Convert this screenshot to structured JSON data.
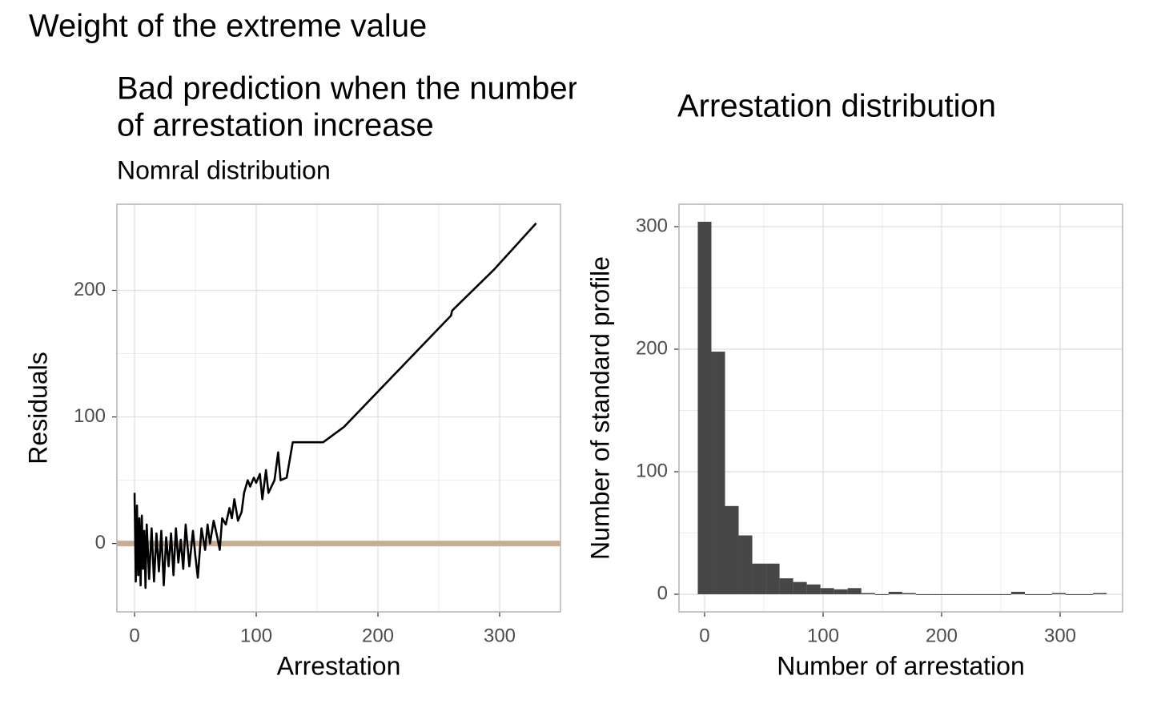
{
  "title": "Weight of the extreme value",
  "chart_data": [
    {
      "type": "line",
      "title": [
        "Bad prediction when the number",
        "of arrestation increase"
      ],
      "subtitle": "Nomral distribution",
      "x_label": "Arrestation",
      "y_label": "Residuals",
      "x": [
        0,
        1,
        2,
        3,
        4,
        5,
        6,
        7,
        8,
        9,
        10,
        12,
        14,
        16,
        18,
        20,
        22,
        24,
        26,
        28,
        30,
        32,
        34,
        36,
        38,
        40,
        42,
        45,
        48,
        50,
        52,
        55,
        58,
        60,
        62,
        65,
        68,
        70,
        72,
        75,
        78,
        80,
        82,
        85,
        88,
        90,
        93,
        95,
        98,
        100,
        103,
        105,
        108,
        110,
        115,
        118,
        120,
        125,
        130,
        155,
        172,
        260,
        261,
        295,
        330
      ],
      "values": [
        40,
        -30,
        30,
        -25,
        20,
        -33,
        22,
        -20,
        10,
        -35,
        15,
        -28,
        12,
        -30,
        8,
        -22,
        10,
        -33,
        5,
        -18,
        8,
        -25,
        12,
        -15,
        3,
        -20,
        15,
        -18,
        10,
        -10,
        -27,
        12,
        -5,
        15,
        0,
        18,
        5,
        -5,
        20,
        15,
        28,
        20,
        35,
        18,
        25,
        40,
        50,
        45,
        52,
        48,
        55,
        35,
        58,
        40,
        50,
        72,
        50,
        52,
        80,
        80,
        92,
        180,
        184,
        216,
        253
      ],
      "color": "#000000",
      "hline": 0,
      "hline_color": "#c8ad8e",
      "xlim": [
        -14.5,
        350
      ],
      "ylim": [
        -54,
        268
      ],
      "xticks": [
        0,
        100,
        200,
        300
      ],
      "yticks": [
        0,
        100,
        200
      ],
      "grid": true,
      "minor_grid": true
    },
    {
      "type": "histogram",
      "title": [
        "Arrestation distribution"
      ],
      "x_label": "Number of arrestation",
      "y_label": "Number of standard profile",
      "bins": [
        -5.75,
        5.75,
        17.25,
        28.75,
        40.25,
        51.75,
        63.25,
        74.75,
        86.25,
        97.75,
        109.25,
        120.75,
        132.25,
        143.75,
        155.25,
        166.75,
        178.25,
        189.75,
        201.25,
        212.75,
        224.25,
        235.75,
        247.25,
        258.75,
        270.25,
        281.75,
        293.25,
        304.75,
        316.25,
        327.75,
        339.25
      ],
      "values": [
        304,
        198,
        72,
        48,
        25,
        25,
        13,
        10,
        8,
        5,
        4,
        5,
        1,
        0,
        2,
        1,
        0,
        0,
        0,
        0,
        0,
        0,
        0,
        2,
        0,
        0,
        1,
        0,
        0,
        1
      ],
      "color": "#474747",
      "xlim": [
        -21.6,
        352.7
      ],
      "ylim": [
        -14.4,
        318.3
      ],
      "xticks": [
        0,
        100,
        200,
        300
      ],
      "yticks": [
        0,
        100,
        200,
        300
      ],
      "grid": true,
      "minor_grid": true
    }
  ]
}
